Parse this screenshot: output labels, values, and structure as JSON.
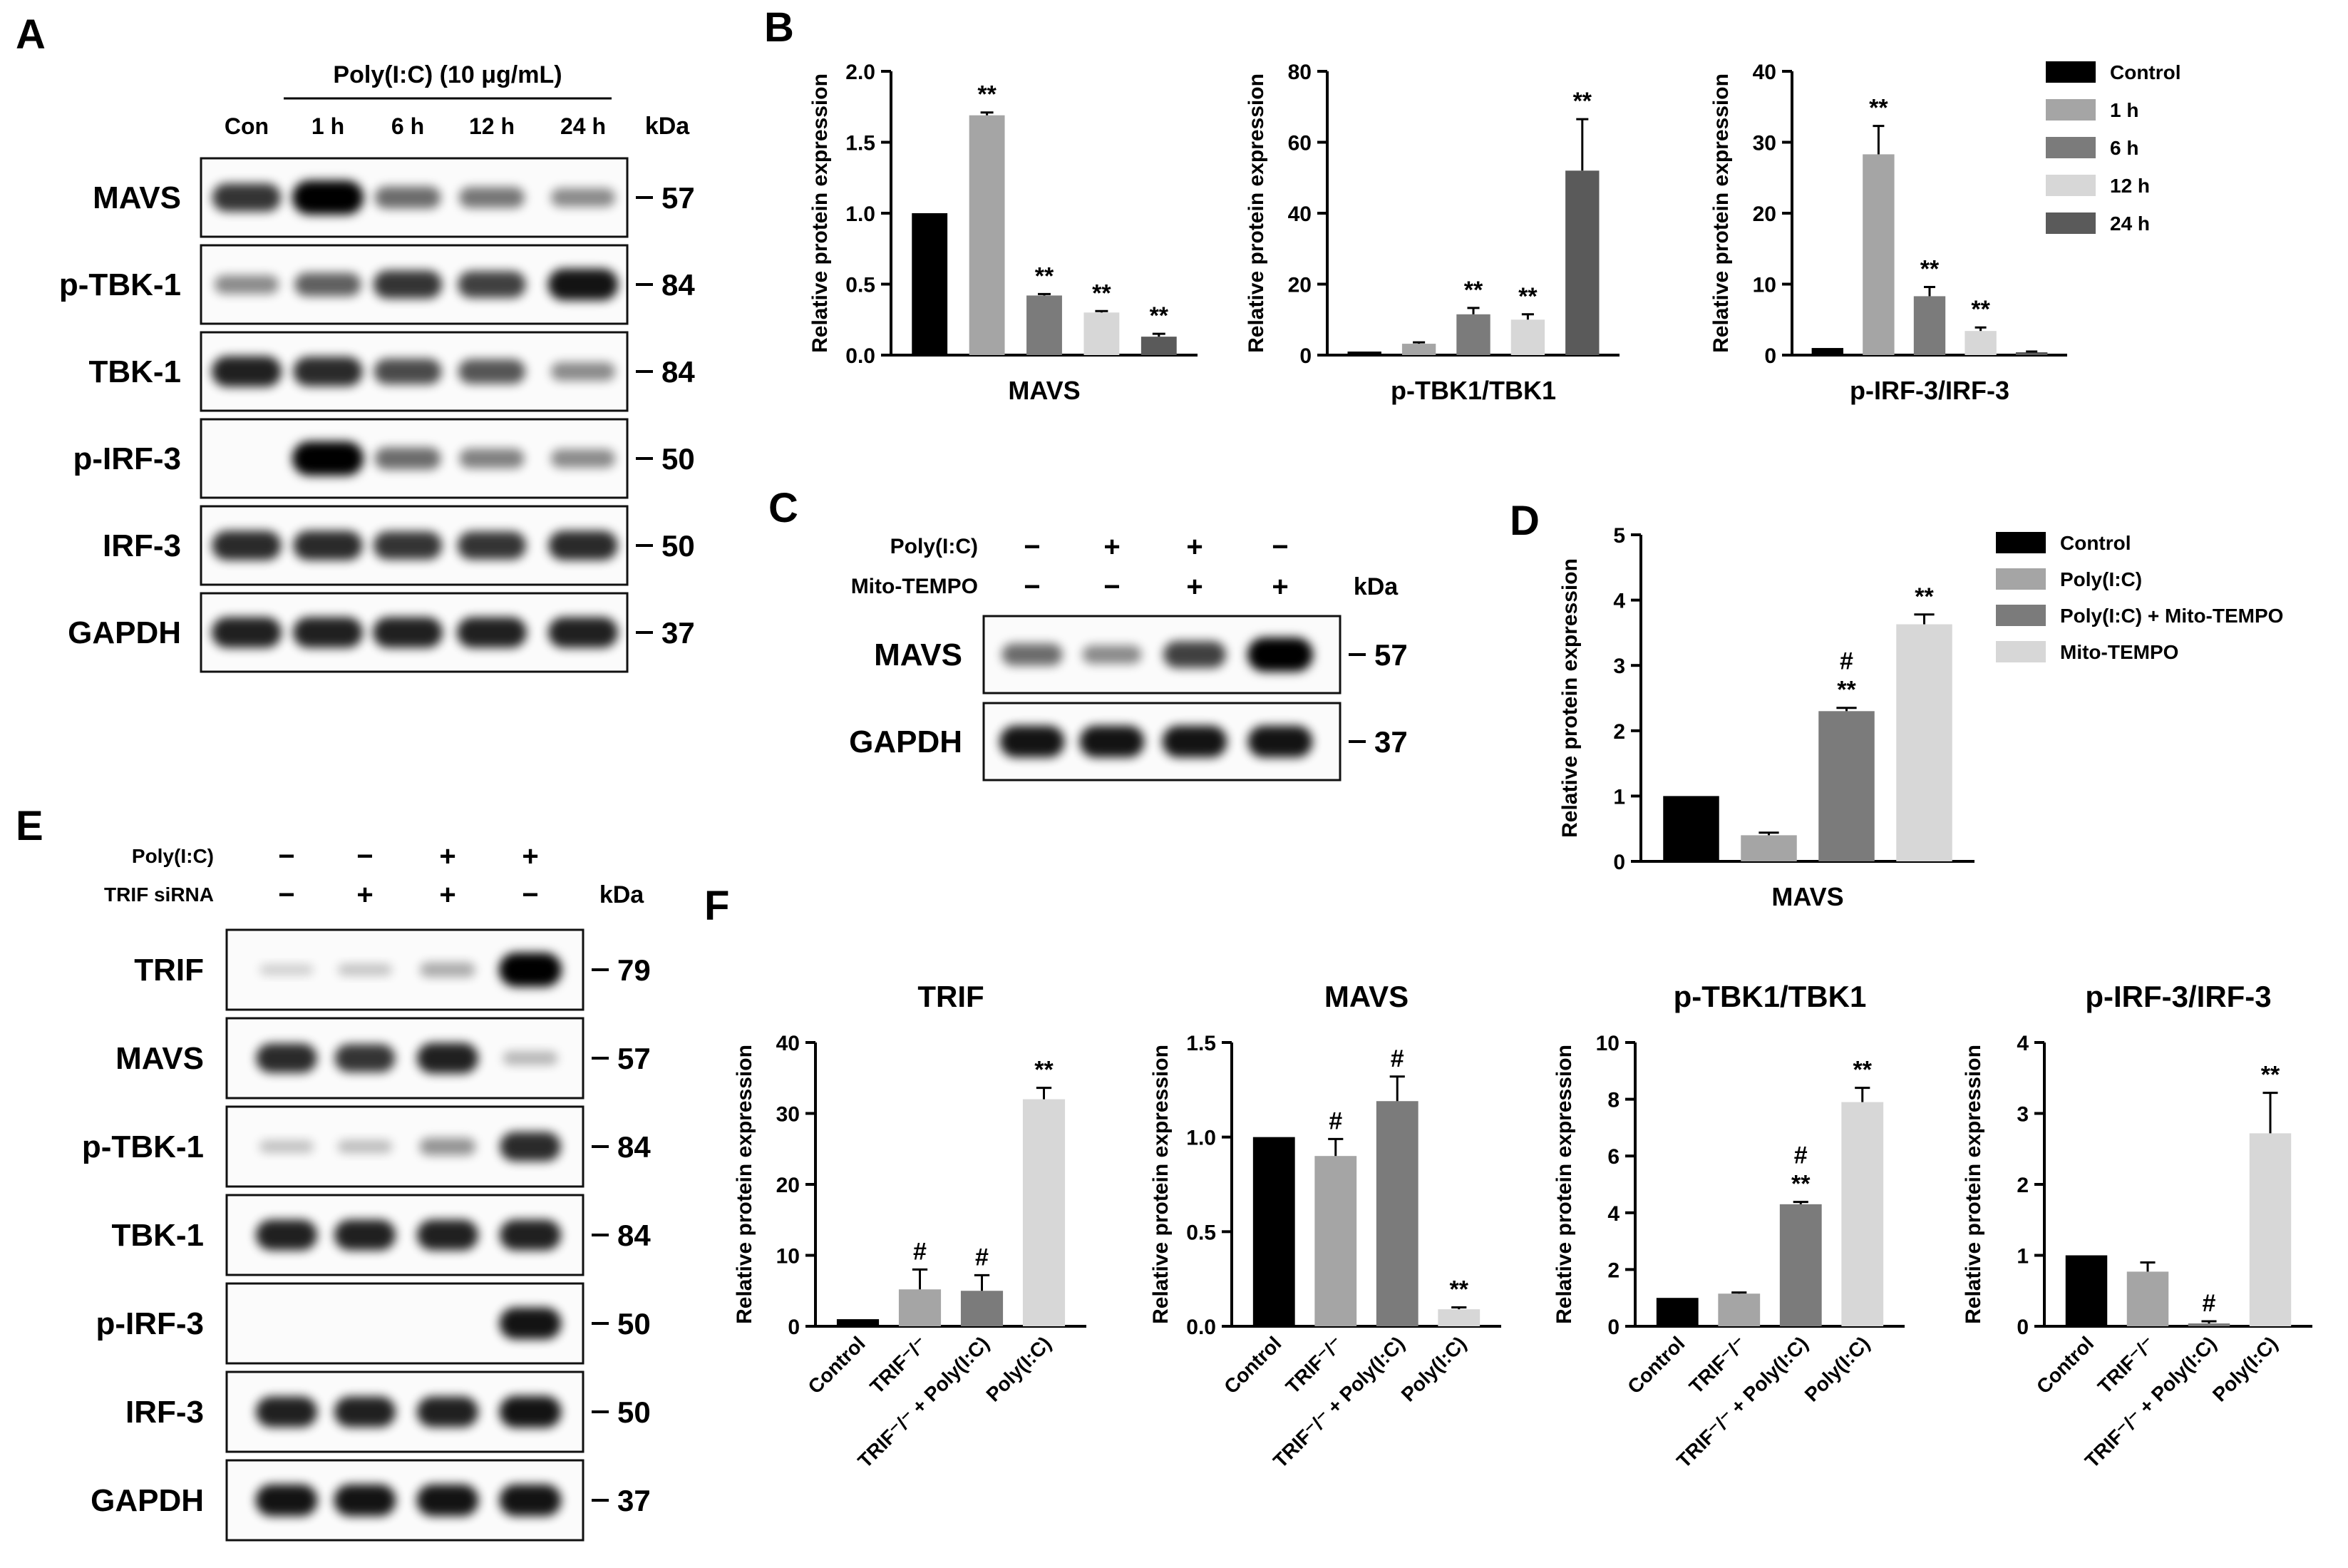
{
  "panels": {
    "A": {
      "letter": "A",
      "treatment": "Poly(I:C) (10 μg/mL)",
      "lanes": [
        "Con",
        "1 h",
        "6 h",
        "12 h",
        "24 h"
      ],
      "kda_label": "kDa",
      "rows": [
        {
          "label": "MAVS",
          "kda": "57",
          "bands": [
            0.75,
            1.0,
            0.5,
            0.45,
            0.35
          ]
        },
        {
          "label": "p-TBK-1",
          "kda": "84",
          "bands": [
            0.35,
            0.55,
            0.75,
            0.7,
            0.9
          ]
        },
        {
          "label": "TBK-1",
          "kda": "84",
          "bands": [
            0.85,
            0.8,
            0.65,
            0.6,
            0.35
          ]
        },
        {
          "label": "p-IRF-3",
          "kda": "50",
          "bands": [
            0.0,
            1.0,
            0.5,
            0.4,
            0.35
          ]
        },
        {
          "label": "IRF-3",
          "kda": "50",
          "bands": [
            0.8,
            0.8,
            0.75,
            0.75,
            0.8
          ]
        },
        {
          "label": "GAPDH",
          "kda": "37",
          "bands": [
            0.85,
            0.85,
            0.85,
            0.85,
            0.85
          ]
        }
      ]
    },
    "B": {
      "letter": "B"
    },
    "C": {
      "letter": "C",
      "conditions": [
        {
          "label": "Poly(I:C)",
          "signs": [
            "−",
            "+",
            "+",
            "−"
          ]
        },
        {
          "label": "Mito-TEMPO",
          "signs": [
            "−",
            "−",
            "+",
            "+"
          ]
        }
      ],
      "kda_label": "kDa",
      "rows": [
        {
          "label": "MAVS",
          "kda": "57",
          "bands": [
            0.5,
            0.35,
            0.7,
            1.0
          ]
        },
        {
          "label": "GAPDH",
          "kda": "37",
          "bands": [
            0.9,
            0.9,
            0.9,
            0.9
          ]
        }
      ]
    },
    "D": {
      "letter": "D"
    },
    "E": {
      "letter": "E",
      "conditions": [
        {
          "label": "Poly(I:C)",
          "signs": [
            "−",
            "−",
            "+",
            "+"
          ]
        },
        {
          "label": "TRIF siRNA",
          "signs": [
            "−",
            "+",
            "+",
            "−"
          ]
        }
      ],
      "kda_label": "kDa",
      "rows": [
        {
          "label": "TRIF",
          "kda": "79",
          "bands": [
            0.03,
            0.08,
            0.2,
            1.0
          ]
        },
        {
          "label": "MAVS",
          "kda": "57",
          "bands": [
            0.8,
            0.75,
            0.85,
            0.15
          ]
        },
        {
          "label": "p-TBK-1",
          "kda": "84",
          "bands": [
            0.1,
            0.12,
            0.3,
            0.8
          ]
        },
        {
          "label": "TBK-1",
          "kda": "84",
          "bands": [
            0.85,
            0.85,
            0.85,
            0.85
          ]
        },
        {
          "label": "p-IRF-3",
          "kda": "50",
          "bands": [
            0.0,
            0.0,
            0.0,
            0.9
          ]
        },
        {
          "label": "IRF-3",
          "kda": "50",
          "bands": [
            0.85,
            0.85,
            0.85,
            0.9
          ]
        },
        {
          "label": "GAPDH",
          "kda": "37",
          "bands": [
            0.9,
            0.9,
            0.9,
            0.9
          ]
        }
      ]
    },
    "F": {
      "letter": "F"
    }
  },
  "chart_data": [
    {
      "id": "B1",
      "type": "bar",
      "title": "",
      "xlabel": "MAVS",
      "ylabel": "Relative protein expression",
      "ylim": [
        0,
        2.0
      ],
      "yticks": [
        "0.0",
        "0.5",
        "1.0",
        "1.5",
        "2.0"
      ],
      "ytick_values": [
        0,
        0.5,
        1.0,
        1.5,
        2.0
      ],
      "categories": [
        "Control",
        "1 h",
        "6 h",
        "12 h",
        "24 h"
      ],
      "values": [
        1.0,
        1.69,
        0.42,
        0.3,
        0.13
      ],
      "errors": [
        0,
        0.02,
        0.01,
        0.01,
        0.02
      ],
      "annotations": [
        "",
        "**",
        "**",
        "**",
        "**"
      ],
      "colors": [
        "#000000",
        "#a5a5a5",
        "#7b7b7b",
        "#d7d7d7",
        "#5a5a5a"
      ]
    },
    {
      "id": "B2",
      "type": "bar",
      "title": "",
      "xlabel": "p-TBK1/TBK1",
      "ylabel": "Relative protein expression",
      "ylim": [
        0,
        80
      ],
      "yticks": [
        "0",
        "20",
        "40",
        "60",
        "80"
      ],
      "ytick_values": [
        0,
        20,
        40,
        60,
        80
      ],
      "categories": [
        "Control",
        "1 h",
        "6 h",
        "12 h",
        "24 h"
      ],
      "values": [
        1.0,
        3.2,
        11.5,
        10.0,
        52.0
      ],
      "errors": [
        0,
        0.4,
        1.8,
        1.5,
        14.5
      ],
      "annotations": [
        "",
        "",
        "**",
        "**",
        "**"
      ],
      "colors": [
        "#000000",
        "#a5a5a5",
        "#7b7b7b",
        "#d7d7d7",
        "#5a5a5a"
      ]
    },
    {
      "id": "B3",
      "type": "bar",
      "title": "",
      "xlabel": "p-IRF-3/IRF-3",
      "ylabel": "Relative protein expression",
      "ylim": [
        0,
        40
      ],
      "yticks": [
        "0",
        "10",
        "20",
        "30",
        "40"
      ],
      "ytick_values": [
        0,
        10,
        20,
        30,
        40
      ],
      "categories": [
        "Control",
        "1 h",
        "6 h",
        "12 h",
        "24 h"
      ],
      "values": [
        1.0,
        28.3,
        8.3,
        3.4,
        0.4
      ],
      "errors": [
        0,
        4.0,
        1.3,
        0.5,
        0.1
      ],
      "annotations": [
        "",
        "**",
        "**",
        "**",
        ""
      ],
      "colors": [
        "#000000",
        "#a5a5a5",
        "#7b7b7b",
        "#d7d7d7",
        "#5a5a5a"
      ],
      "legend": {
        "position": "right",
        "entries": [
          {
            "label": "Control",
            "color": "#000000"
          },
          {
            "label": "1 h",
            "color": "#a5a5a5"
          },
          {
            "label": "6 h",
            "color": "#7b7b7b"
          },
          {
            "label": "12 h",
            "color": "#d7d7d7"
          },
          {
            "label": "24 h",
            "color": "#5a5a5a"
          }
        ]
      }
    },
    {
      "id": "D",
      "type": "bar",
      "title": "",
      "xlabel": "MAVS",
      "ylabel": "Relative protein expression",
      "ylim": [
        0,
        5
      ],
      "yticks": [
        "0",
        "1",
        "2",
        "3",
        "4",
        "5"
      ],
      "ytick_values": [
        0,
        1,
        2,
        3,
        4,
        5
      ],
      "categories": [
        "Control",
        "Poly(I:C)",
        "Poly(I:C) + Mito-TEMPO",
        "Mito-TEMPO"
      ],
      "values": [
        1.0,
        0.4,
        2.3,
        3.63
      ],
      "errors": [
        0,
        0.04,
        0.05,
        0.15
      ],
      "annotations": [
        "",
        "",
        "#\n**",
        "**"
      ],
      "colors": [
        "#000000",
        "#a5a5a5",
        "#7b7b7b",
        "#d7d7d7"
      ],
      "legend": {
        "position": "right",
        "entries": [
          {
            "label": "Control",
            "color": "#000000"
          },
          {
            "label": "Poly(I:C)",
            "color": "#a5a5a5"
          },
          {
            "label": "Poly(I:C) + Mito-TEMPO",
            "color": "#7b7b7b"
          },
          {
            "label": "Mito-TEMPO",
            "color": "#d7d7d7"
          }
        ]
      }
    },
    {
      "id": "F1",
      "type": "bar",
      "title": "TRIF",
      "xlabel": "",
      "ylabel": "Relative protein expression",
      "ylim": [
        0,
        40
      ],
      "yticks": [
        "0",
        "10",
        "20",
        "30",
        "40"
      ],
      "ytick_values": [
        0,
        10,
        20,
        30,
        40
      ],
      "categories": [
        "Control",
        "TRIF⁻/⁻",
        "TRIF⁻/⁻ + Poly(I:C)",
        "Poly(I:C)"
      ],
      "values": [
        1.0,
        5.2,
        5.0,
        32.0
      ],
      "errors": [
        0,
        2.8,
        2.2,
        1.6
      ],
      "annotations": [
        "",
        "#",
        "#",
        "**"
      ],
      "colors": [
        "#000000",
        "#a5a5a5",
        "#7b7b7b",
        "#d7d7d7"
      ]
    },
    {
      "id": "F2",
      "type": "bar",
      "title": "MAVS",
      "xlabel": "",
      "ylabel": "Relative protein expression",
      "ylim": [
        0,
        1.5
      ],
      "yticks": [
        "0.0",
        "0.5",
        "1.0",
        "1.5"
      ],
      "ytick_values": [
        0,
        0.5,
        1.0,
        1.5
      ],
      "categories": [
        "Control",
        "TRIF⁻/⁻",
        "TRIF⁻/⁻ + Poly(I:C)",
        "Poly(I:C)"
      ],
      "values": [
        1.0,
        0.9,
        1.19,
        0.09
      ],
      "errors": [
        0,
        0.09,
        0.13,
        0.01
      ],
      "annotations": [
        "",
        "#",
        "#",
        "**"
      ],
      "colors": [
        "#000000",
        "#a5a5a5",
        "#7b7b7b",
        "#d7d7d7"
      ]
    },
    {
      "id": "F3",
      "type": "bar",
      "title": "p-TBK1/TBK1",
      "xlabel": "",
      "ylabel": "Relative protein expression",
      "ylim": [
        0,
        10
      ],
      "yticks": [
        "0",
        "2",
        "4",
        "6",
        "8",
        "10"
      ],
      "ytick_values": [
        0,
        2,
        4,
        6,
        8,
        10
      ],
      "categories": [
        "Control",
        "TRIF⁻/⁻",
        "TRIF⁻/⁻ + Poly(I:C)",
        "Poly(I:C)"
      ],
      "values": [
        1.0,
        1.15,
        4.3,
        7.9
      ],
      "errors": [
        0,
        0.04,
        0.08,
        0.5
      ],
      "annotations": [
        "",
        "",
        "#\n**",
        "**"
      ],
      "colors": [
        "#000000",
        "#a5a5a5",
        "#7b7b7b",
        "#d7d7d7"
      ]
    },
    {
      "id": "F4",
      "type": "bar",
      "title": "p-IRF-3/IRF-3",
      "xlabel": "",
      "ylabel": "Relative protein expression",
      "ylim": [
        0,
        4
      ],
      "yticks": [
        "0",
        "1",
        "2",
        "3",
        "4"
      ],
      "ytick_values": [
        0,
        1,
        2,
        3,
        4
      ],
      "categories": [
        "Control",
        "TRIF⁻/⁻",
        "TRIF⁻/⁻ + Poly(I:C)",
        "Poly(I:C)"
      ],
      "values": [
        1.0,
        0.77,
        0.04,
        2.72
      ],
      "errors": [
        0,
        0.13,
        0.03,
        0.57
      ],
      "annotations": [
        "",
        "",
        "#",
        "**"
      ],
      "colors": [
        "#000000",
        "#a5a5a5",
        "#7b7b7b",
        "#d7d7d7"
      ]
    }
  ]
}
